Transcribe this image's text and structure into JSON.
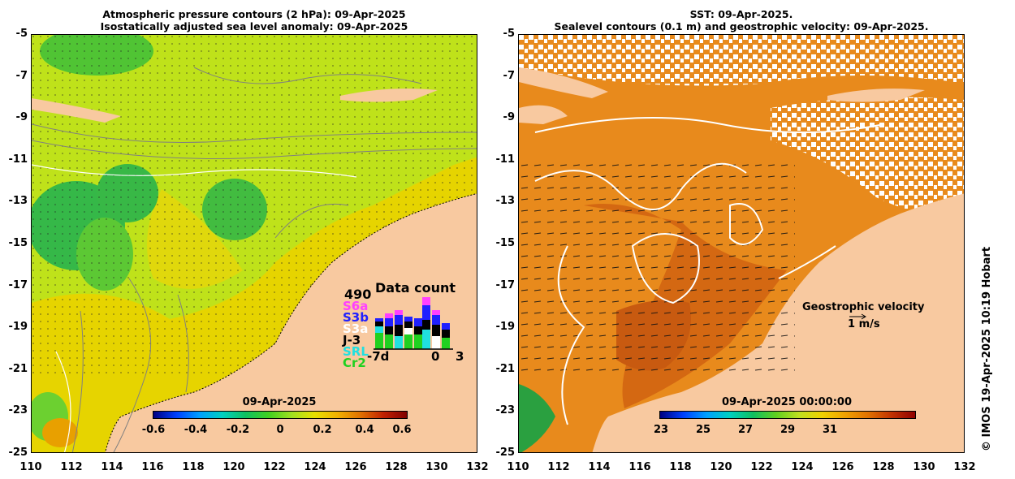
{
  "left_panel": {
    "title_line1": "Atmospheric pressure contours (2 hPa): 09-Apr-2025",
    "title_line2": "Isostatically adjusted sea level anomaly: 09-Apr-2025",
    "colorbar": {
      "date": "09-Apr-2025",
      "ticks": [
        "-0.6",
        "-0.4",
        "-0.2",
        "0",
        "0.2",
        "0.4",
        "0.6"
      ]
    },
    "data_count": {
      "max_label": "490",
      "title": "Data count",
      "missions": [
        "S6a",
        "S3b",
        "S3a",
        "J-3",
        "SRL",
        "Cr2"
      ],
      "mission_colors": [
        "#ff40ff",
        "#2020ff",
        "#ffffff",
        "#000000",
        "#20e0e0",
        "#20d020"
      ],
      "x_labels": [
        "-7d",
        "0",
        "3"
      ]
    }
  },
  "right_panel": {
    "title_line1": "SST: 09-Apr-2025.",
    "title_line2": "Sealevel contours (0.1 m) and geostrophic velocity: 09-Apr-2025.",
    "colorbar": {
      "date": "09-Apr-2025 00:00:00",
      "ticks": [
        "23",
        "25",
        "27",
        "29",
        "31"
      ]
    },
    "velocity_legend": {
      "title": "Geostrophic velocity",
      "scale": "1 m/s"
    }
  },
  "axes": {
    "y_labels": [
      "-5",
      "-7",
      "-9",
      "-11",
      "-13",
      "-15",
      "-17",
      "-19",
      "-21",
      "-23",
      "-25"
    ],
    "x_labels": [
      "110",
      "112",
      "114",
      "116",
      "118",
      "120",
      "122",
      "124",
      "126",
      "128",
      "130",
      "132"
    ]
  },
  "credit": "© IMOS 19-Apr-2025 10:19 Hobart",
  "colors": {
    "land": "#f8c9a0",
    "sla_high": "#e8d000",
    "sla_mid": "#b0e020",
    "sla_low": "#30c040",
    "sst_warm": "#d86010",
    "sst_mid": "#e88a20",
    "cloud": "#ffffff"
  }
}
